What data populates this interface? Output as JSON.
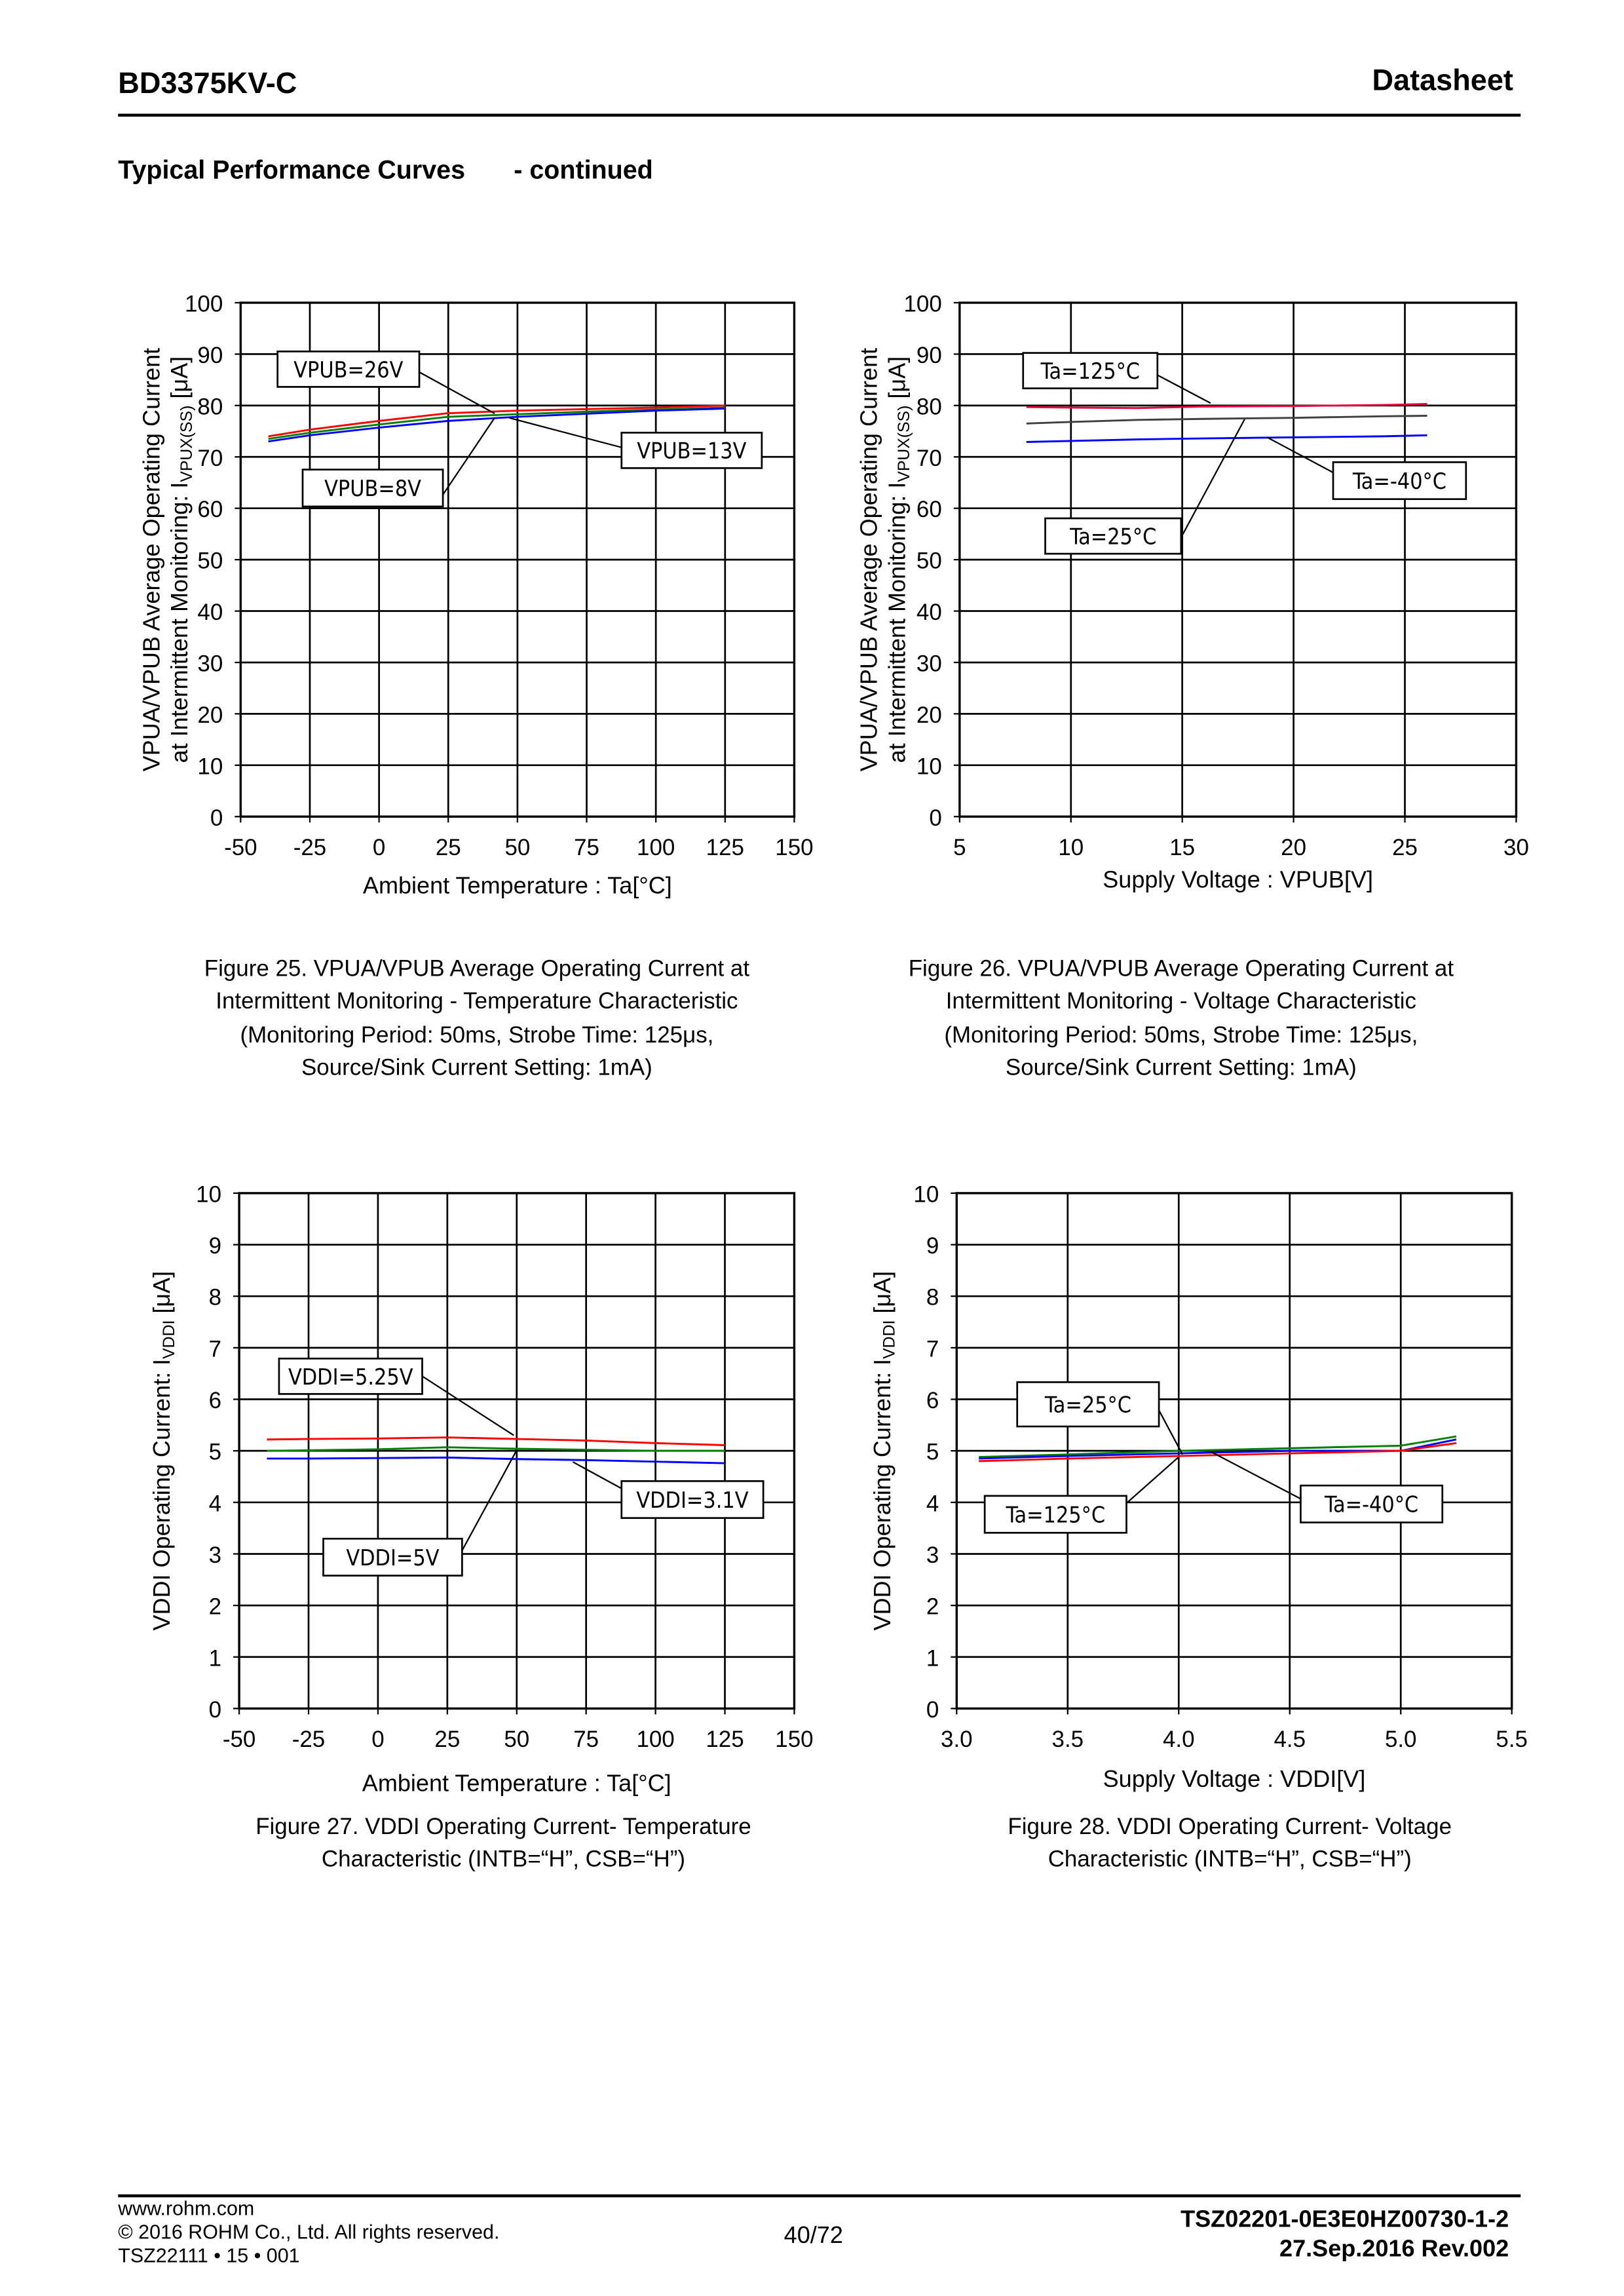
{
  "header": {
    "title": "BD3375KV-C",
    "doc_type": "Datasheet"
  },
  "section": {
    "title": "Typical Performance Curves",
    "suffix": "- continued"
  },
  "chart_data": [
    {
      "type": "line",
      "x": [
        -40,
        -25,
        0,
        25,
        50,
        75,
        100,
        125
      ],
      "xlim": [
        -50,
        150
      ],
      "xticks": [
        "-50",
        "-25",
        "0",
        "25",
        "50",
        "75",
        "100",
        "125",
        "150"
      ],
      "ylim": [
        0,
        100
      ],
      "yticks": [
        "0",
        "10",
        "20",
        "30",
        "40",
        "50",
        "60",
        "70",
        "80",
        "90",
        "100"
      ],
      "grid": true,
      "xlabel": "Ambient Temperature : Ta[°C]",
      "ylabel": {
        "line1": "VPUA/VPUB  Average Operating Current",
        "line2_pre": "at Intermittent Monitoring: I",
        "line2_sub": "VPUX(SS)",
        "line2_post": " [μA]"
      },
      "series": [
        {
          "name": "VPUB=26V",
          "color": "#ff0000",
          "values": [
            74,
            75.3,
            77,
            78.5,
            79,
            79.3,
            79.6,
            80
          ]
        },
        {
          "name": "VPUB=13V",
          "color": "#008000",
          "values": [
            73.5,
            74.7,
            76.3,
            77.8,
            78.3,
            78.8,
            79.2,
            79.6
          ]
        },
        {
          "name": "VPUB=8V",
          "color": "#0000ff",
          "values": [
            73,
            74.2,
            75.7,
            77,
            77.8,
            78.4,
            79,
            79.4
          ]
        }
      ],
      "caption": [
        "Figure 25. VPUA/VPUB Average Operating Current at",
        "Intermittent Monitoring - Temperature Characteristic",
        "(Monitoring Period: 50ms, Strobe Time: 125μs,",
        "Source/Sink Current Setting: 1mA)"
      ]
    },
    {
      "type": "line",
      "x": [
        8,
        10,
        13,
        16,
        20,
        24,
        26
      ],
      "xlim": [
        5,
        30
      ],
      "xticks": [
        "5",
        "10",
        "15",
        "20",
        "25",
        "30"
      ],
      "ylim": [
        0,
        100
      ],
      "yticks": [
        "0",
        "10",
        "20",
        "30",
        "40",
        "50",
        "60",
        "70",
        "80",
        "90",
        "100"
      ],
      "grid": true,
      "xlabel": "Supply Voltage : VPUB[V]",
      "ylabel": {
        "line1": "VPUA/VPUB  Average Operating Current",
        "line2_pre": "at Intermittent Monitoring: I",
        "line2_sub": "VPUX(SS)",
        "line2_post": " [μA]"
      },
      "series": [
        {
          "name": "Ta=125°C",
          "color": "#e8003a",
          "values": [
            79.7,
            79.6,
            79.5,
            79.8,
            79.9,
            80.1,
            80.3
          ]
        },
        {
          "name": "Ta=25°C",
          "color": "#404040",
          "values": [
            76.5,
            76.8,
            77.2,
            77.4,
            77.6,
            77.9,
            78
          ]
        },
        {
          "name": "Ta=-40°C",
          "color": "#0000ff",
          "values": [
            72.9,
            73.1,
            73.4,
            73.6,
            73.8,
            74,
            74.2
          ]
        }
      ],
      "caption": [
        "Figure 26. VPUA/VPUB Average Operating Current at",
        "Intermittent Monitoring - Voltage Characteristic",
        "(Monitoring Period: 50ms, Strobe Time: 125μs,",
        "Source/Sink Current Setting: 1mA)"
      ]
    },
    {
      "type": "line",
      "x": [
        -40,
        -25,
        0,
        25,
        50,
        75,
        100,
        125
      ],
      "xlim": [
        -50,
        150
      ],
      "xticks": [
        "-50",
        "-25",
        "0",
        "25",
        "50",
        "75",
        "100",
        "125",
        "150"
      ],
      "ylim": [
        0,
        10
      ],
      "yticks": [
        "0",
        "1",
        "2",
        "3",
        "4",
        "5",
        "6",
        "7",
        "8",
        "9",
        "10"
      ],
      "grid": true,
      "xlabel": "Ambient Temperature : Ta[°C]",
      "ylabel": {
        "line1": "",
        "line2_pre": "VDDI Operating Current: I",
        "line2_sub": "VDDI",
        "line2_post": " [μA]"
      },
      "series": [
        {
          "name": "VDDI=5.25V",
          "color": "#ff0000",
          "values": [
            5.22,
            5.23,
            5.24,
            5.26,
            5.23,
            5.2,
            5.15,
            5.11
          ]
        },
        {
          "name": "VDDI=5V",
          "color": "#008000",
          "values": [
            5.0,
            5.01,
            5.03,
            5.07,
            5.04,
            5.02,
            5.0,
            5.0
          ]
        },
        {
          "name": "VDDI=3.1V",
          "color": "#0000ff",
          "values": [
            4.85,
            4.85,
            4.86,
            4.87,
            4.84,
            4.82,
            4.79,
            4.76
          ]
        }
      ],
      "caption": [
        "Figure 27. VDDI Operating Current- Temperature",
        "Characteristic (INTB=“H”, CSB=“H”)"
      ]
    },
    {
      "type": "line",
      "x": [
        3.1,
        3.5,
        4.0,
        4.5,
        5.0,
        5.25
      ],
      "xlim": [
        3.0,
        5.5
      ],
      "xticks": [
        "3.0",
        "3.5",
        "4.0",
        "4.5",
        "5.0",
        "5.5"
      ],
      "ylim": [
        0,
        10
      ],
      "yticks": [
        "0",
        "1",
        "2",
        "3",
        "4",
        "5",
        "6",
        "7",
        "8",
        "9",
        "10"
      ],
      "grid": true,
      "xlabel": "Supply Voltage : VDDI[V]",
      "ylabel": {
        "line1": "",
        "line2_pre": "VDDI Operating Current: I",
        "line2_sub": "VDDI",
        "line2_post": " [μA]"
      },
      "series": [
        {
          "name": "Ta=25°C",
          "color": "#008000",
          "values": [
            4.88,
            4.93,
            5.0,
            5.05,
            5.1,
            5.28
          ]
        },
        {
          "name": "Ta=-40°C",
          "color": "#0000ff",
          "values": [
            4.85,
            4.9,
            4.95,
            5.0,
            5.0,
            5.22
          ]
        },
        {
          "name": "Ta=125°C",
          "color": "#ff0000",
          "values": [
            4.8,
            4.85,
            4.9,
            4.95,
            5.0,
            5.15
          ]
        }
      ],
      "caption": [
        "Figure 28. VDDI Operating Current- Voltage",
        "Characteristic (INTB=“H”, CSB=“H”)"
      ]
    }
  ],
  "footer": {
    "website": "www.rohm.com",
    "copyright": "© 2016 ROHM Co., Ltd. All rights reserved.",
    "form_code": "TSZ22111 • 15 • 001",
    "page": "40/72",
    "doc_number": "TSZ02201-0E3E0HZ00730-1-2",
    "date_rev": "27.Sep.2016 Rev.002"
  }
}
